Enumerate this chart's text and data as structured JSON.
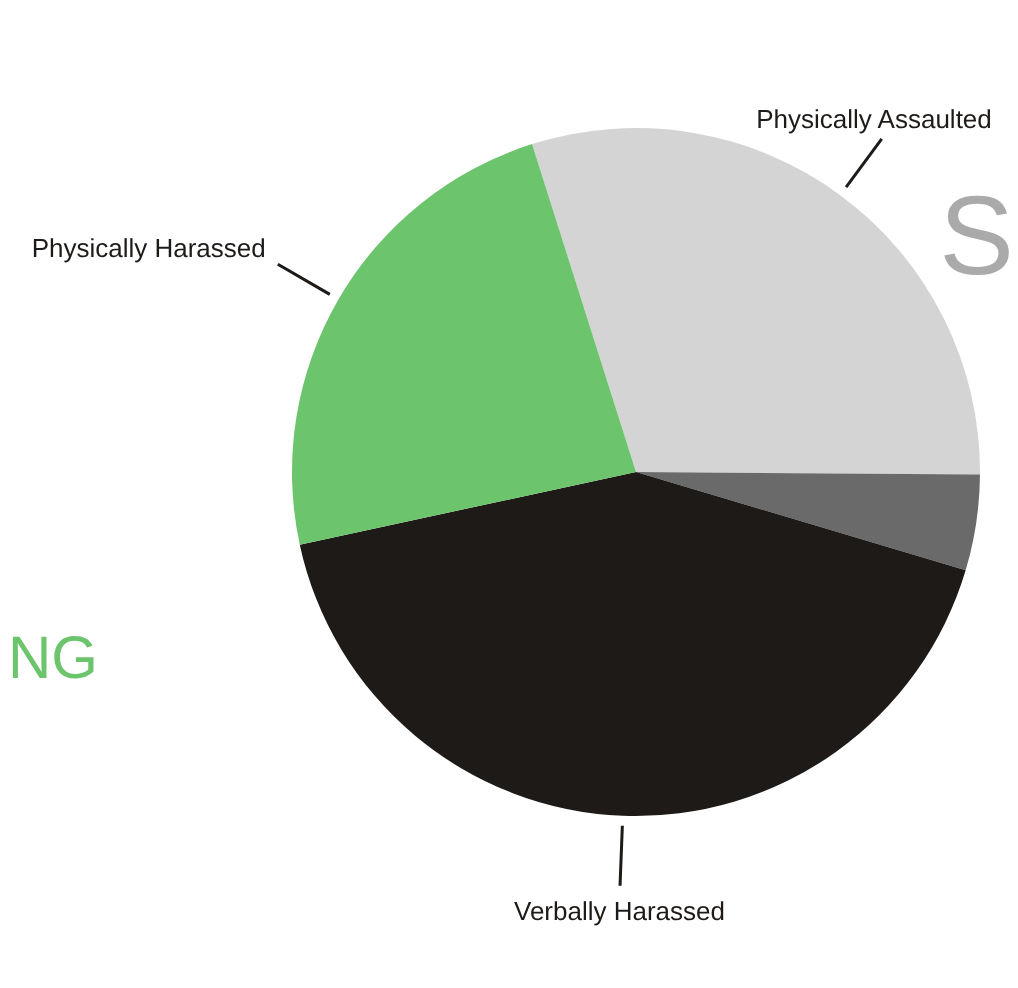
{
  "chart_data": {
    "type": "pie",
    "categories": [
      "Physically Assaulted",
      null,
      "Verbally Harassed",
      "Physically Harassed"
    ],
    "values": [
      30,
      4.5,
      42,
      23.5
    ],
    "colors": [
      "#d4d4d4",
      "#6a6a6a",
      "#1d1a17",
      "#6cc46c"
    ],
    "annotations": [
      "NG",
      "S"
    ]
  }
}
